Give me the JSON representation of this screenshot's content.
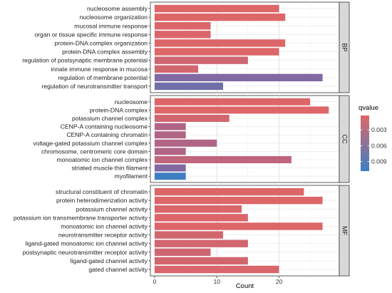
{
  "chart_data": {
    "type": "bar",
    "orientation": "horizontal",
    "xlabel": "Count",
    "xlim": [
      0,
      29
    ],
    "xticks": [
      "0",
      "10",
      "20"
    ],
    "grid": true,
    "legend": {
      "title": "qvalue",
      "placement": "right",
      "ticks": [
        "0.003",
        "0.006",
        "0.009"
      ],
      "tick_values": [
        0.003,
        0.006,
        0.009
      ],
      "range": [
        0.0003,
        0.0108
      ],
      "color_low": "#e06666",
      "color_high": "#3a7fc4"
    },
    "facets": [
      {
        "name": "BP",
        "categories": [
          "nucleosome assembly",
          "nucleosome organization",
          "mucosal immune response",
          "organ or tissue specific immune response",
          "protein-DNA complex organization",
          "protein-DNA complex assembly",
          "regulation of postsynaptic membrane potential",
          "innate immune response in mucosa",
          "regulation of membrane potential",
          "regulation of neurotransmitter transport"
        ],
        "values": [
          20,
          21,
          9,
          9,
          21,
          20,
          15,
          7,
          27,
          11
        ],
        "qvalues": [
          0.0005,
          0.0005,
          0.0006,
          0.0007,
          0.0005,
          0.0005,
          0.0015,
          0.0012,
          0.0065,
          0.0075
        ]
      },
      {
        "name": "CC",
        "categories": [
          "nucleosome",
          "protein-DNA complex",
          "potassium channel complex",
          "CENP-A containing nucleosome",
          "CENP-A containing chromatin",
          "voltage-gated potassium channel complex",
          "chromosome, centromeric core domain",
          "monoatomic ion channel complex",
          "striated muscle thin filament",
          "myofilament"
        ],
        "values": [
          25,
          28,
          12,
          5,
          5,
          10,
          5,
          22,
          5,
          5
        ],
        "qvalues": [
          0.0005,
          0.0005,
          0.0012,
          0.0035,
          0.0035,
          0.0035,
          0.0035,
          0.0025,
          0.0065,
          0.0105
        ]
      },
      {
        "name": "MF",
        "categories": [
          "structural constituent of chromatin",
          "protein heterodimerization activity",
          "potassium channel activity",
          "potassium ion transmembrane transporter activity",
          "monoatomic ion channel activity",
          "neurotransmitter receptor activity",
          "ligand-gated monoatomic ion channel activity",
          "postsynaptic neurotransmitter receptor activity",
          "ligand-gated channel activity",
          "gated channel activity"
        ],
        "values": [
          24,
          27,
          14,
          15,
          27,
          11,
          15,
          9,
          15,
          20
        ],
        "qvalues": [
          0.0005,
          0.0005,
          0.0007,
          0.0007,
          0.0005,
          0.0012,
          0.0012,
          0.0015,
          0.0012,
          0.0008
        ]
      }
    ]
  }
}
